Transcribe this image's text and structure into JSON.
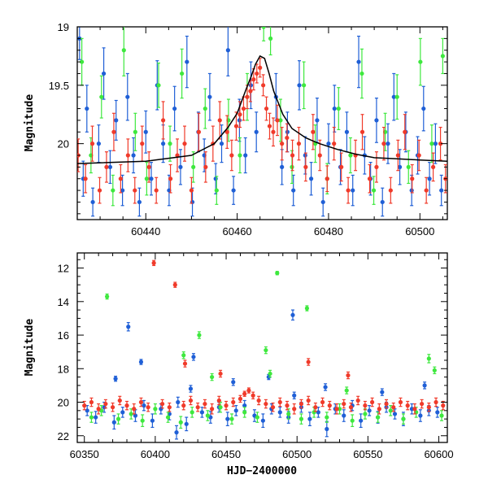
{
  "colors": {
    "blue": "#1f5fd6",
    "green": "#3ee83e",
    "red": "#f03a2a",
    "model": "#000000"
  },
  "chart_data": [
    {
      "type": "scatter",
      "title": "",
      "xlabel": "",
      "ylabel": "Magnitude",
      "xlim": [
        60425,
        60506
      ],
      "ylim": [
        19.0,
        20.65
      ],
      "y_inverted": true,
      "xticks": [
        60440,
        60460,
        60480,
        60500
      ],
      "yticks": [
        19,
        19.5,
        20
      ],
      "ytick_labels": [
        "19",
        "19.5",
        "20"
      ],
      "model_curve": {
        "x": [
          60425,
          60440,
          60450,
          60455,
          60458,
          60460,
          60462,
          60463,
          60464,
          60465,
          60466,
          60467,
          60468,
          60470,
          60472,
          60475,
          60478,
          60482,
          60486,
          60490,
          60495,
          60500,
          60506
        ],
        "y": [
          20.17,
          20.15,
          20.1,
          20.0,
          19.86,
          19.74,
          19.53,
          19.43,
          19.32,
          19.25,
          19.27,
          19.4,
          19.55,
          19.75,
          19.87,
          19.95,
          20.0,
          20.05,
          20.09,
          20.12,
          20.13,
          20.14,
          20.15
        ]
      },
      "series": [
        {
          "color": "blue",
          "x": [
            60425.5,
            60426.3,
            60427.1,
            60428.4,
            60429.7,
            60430.8,
            60432.2,
            60433.5,
            60434.9,
            60436.0,
            60437.3,
            60438.6,
            60440.0,
            60441.2,
            60442.5,
            60443.8,
            60445.1,
            60446.3,
            60447.6,
            60449.0,
            60450.2,
            60451.5,
            60452.8,
            60454.0,
            60455.3,
            60456.6,
            60458.0,
            60459.2,
            60460.5,
            60461.8,
            60463.0,
            60464.2,
            60468.5,
            60469.8,
            60471.0,
            60472.3,
            60473.6,
            60474.9,
            60476.2,
            60477.5,
            60478.8,
            60480.0,
            60481.3,
            60482.6,
            60484.0,
            60485.3,
            60486.6,
            60487.9,
            60489.2,
            60490.5,
            60491.8,
            60493.0,
            60494.3,
            60495.6,
            60496.9,
            60498.2,
            60499.5,
            60500.8,
            60502.1,
            60503.4,
            60504.7
          ],
          "y": [
            19.1,
            20.3,
            19.7,
            20.5,
            20.0,
            19.4,
            20.2,
            19.8,
            20.4,
            19.6,
            20.1,
            20.5,
            19.9,
            20.3,
            19.5,
            20.0,
            20.4,
            19.7,
            20.2,
            19.3,
            20.5,
            19.9,
            20.1,
            19.6,
            20.3,
            20.0,
            19.2,
            20.4,
            19.8,
            20.1,
            19.5,
            19.9,
            19.6,
            20.2,
            19.9,
            20.4,
            19.5,
            20.1,
            20.3,
            19.8,
            20.5,
            20.0,
            19.7,
            20.2,
            19.9,
            20.4,
            19.3,
            20.1,
            20.3,
            19.8,
            20.5,
            20.0,
            19.6,
            20.2,
            19.9,
            20.4,
            20.1,
            19.7,
            20.3,
            20.0,
            20.4
          ],
          "err": [
            0.18,
            0.15,
            0.2,
            0.12,
            0.16,
            0.22,
            0.14,
            0.17,
            0.13,
            0.2,
            0.15,
            0.12,
            0.18,
            0.14,
            0.21,
            0.16,
            0.13,
            0.19,
            0.15,
            0.22,
            0.12,
            0.17,
            0.14,
            0.2,
            0.13,
            0.16,
            0.22,
            0.12,
            0.18,
            0.15,
            0.2,
            0.17,
            0.2,
            0.15,
            0.17,
            0.13,
            0.21,
            0.16,
            0.14,
            0.19,
            0.12,
            0.17,
            0.2,
            0.15,
            0.17,
            0.13,
            0.22,
            0.16,
            0.14,
            0.19,
            0.12,
            0.17,
            0.2,
            0.15,
            0.17,
            0.13,
            0.16,
            0.19,
            0.14,
            0.17,
            0.13
          ]
        },
        {
          "color": "green",
          "x": [
            60426.0,
            60428.0,
            60430.3,
            60432.8,
            60435.2,
            60437.7,
            60440.2,
            60442.8,
            60445.3,
            60447.9,
            60450.4,
            60453.0,
            60455.5,
            60458.1,
            60460.6,
            60462.2,
            60465.8,
            60467.3,
            60469.5,
            60472.0,
            60474.6,
            60477.1,
            60479.7,
            60482.2,
            60484.8,
            60487.3,
            60489.9,
            60492.4,
            60495.0,
            60497.5,
            60500.1,
            60502.6,
            60505.0
          ],
          "y": [
            19.3,
            20.1,
            19.6,
            20.4,
            19.2,
            19.9,
            20.3,
            19.5,
            20.0,
            19.4,
            20.2,
            19.7,
            20.4,
            19.8,
            20.1,
            19.6,
            19.0,
            19.1,
            19.8,
            20.2,
            19.5,
            20.0,
            20.3,
            19.7,
            20.1,
            19.4,
            20.4,
            19.9,
            19.6,
            20.2,
            19.3,
            20.0,
            19.25
          ],
          "err": [
            0.2,
            0.15,
            0.18,
            0.13,
            0.22,
            0.16,
            0.14,
            0.19,
            0.15,
            0.21,
            0.13,
            0.17,
            0.12,
            0.18,
            0.15,
            0.2,
            0.12,
            0.14,
            0.18,
            0.14,
            0.2,
            0.16,
            0.13,
            0.18,
            0.15,
            0.21,
            0.12,
            0.16,
            0.19,
            0.14,
            0.2,
            0.16,
            0.15
          ]
        },
        {
          "color": "red",
          "x": [
            60425.2,
            60426.8,
            60428.3,
            60429.9,
            60431.4,
            60433.0,
            60434.5,
            60436.1,
            60437.6,
            60439.2,
            60440.7,
            60442.3,
            60443.8,
            60445.4,
            60446.9,
            60448.5,
            60450.0,
            60451.6,
            60453.1,
            60454.7,
            60456.2,
            60457.8,
            60458.8,
            60459.8,
            60460.6,
            60461.4,
            60462.2,
            60462.9,
            60463.6,
            60464.3,
            60465.0,
            60465.7,
            60466.4,
            60467.1,
            60467.9,
            60468.8,
            60469.8,
            60470.9,
            60472.1,
            60473.5,
            60475.0,
            60476.6,
            60478.1,
            60479.7,
            60481.2,
            60482.8,
            60484.3,
            60485.9,
            60487.4,
            60489.0,
            60490.5,
            60492.1,
            60493.6,
            60495.2,
            60496.7,
            60498.3,
            60499.8,
            60501.4,
            60502.9,
            60504.5,
            60505.6
          ],
          "y": [
            20.1,
            20.3,
            20.0,
            20.4,
            20.2,
            19.9,
            20.3,
            20.1,
            20.4,
            20.0,
            20.2,
            20.4,
            19.8,
            20.3,
            20.1,
            20.0,
            20.4,
            19.9,
            20.2,
            20.0,
            19.8,
            19.9,
            20.1,
            19.85,
            19.75,
            19.7,
            19.6,
            19.55,
            19.45,
            19.4,
            19.35,
            19.5,
            19.7,
            19.85,
            19.9,
            19.8,
            20.0,
            19.95,
            20.1,
            20.0,
            20.2,
            19.9,
            20.1,
            20.3,
            20.0,
            20.2,
            20.4,
            20.1,
            19.9,
            20.3,
            20.2,
            20.0,
            20.4,
            20.1,
            19.9,
            20.3,
            20.1,
            20.4,
            20.2,
            20.0,
            20.3
          ],
          "err": [
            0.14,
            0.12,
            0.15,
            0.11,
            0.13,
            0.16,
            0.12,
            0.14,
            0.11,
            0.15,
            0.13,
            0.11,
            0.16,
            0.12,
            0.14,
            0.15,
            0.11,
            0.16,
            0.13,
            0.15,
            0.16,
            0.14,
            0.13,
            0.12,
            0.11,
            0.1,
            0.1,
            0.09,
            0.09,
            0.08,
            0.08,
            0.09,
            0.1,
            0.11,
            0.12,
            0.13,
            0.14,
            0.12,
            0.13,
            0.14,
            0.12,
            0.15,
            0.13,
            0.11,
            0.14,
            0.12,
            0.11,
            0.13,
            0.15,
            0.12,
            0.13,
            0.14,
            0.11,
            0.13,
            0.15,
            0.12,
            0.13,
            0.11,
            0.12,
            0.14,
            0.12
          ]
        }
      ]
    },
    {
      "type": "scatter",
      "title": "",
      "xlabel": "HJD−2400000",
      "ylabel": "Magnitude",
      "xlim": [
        60345,
        60606
      ],
      "ylim": [
        11.1,
        22.4
      ],
      "y_inverted": true,
      "xticks": [
        60350,
        60400,
        60450,
        60500,
        60550,
        60600
      ],
      "yticks": [
        12,
        14,
        16,
        18,
        20,
        22
      ],
      "ytick_labels": [
        "12",
        "14",
        "16",
        "18",
        "20",
        "22"
      ],
      "series": [
        {
          "color": "blue",
          "x": [
            60352,
            60358,
            60364,
            60371,
            60377,
            60381,
            60386,
            60392,
            60398,
            60404,
            60410,
            60416,
            60422,
            60427,
            60433,
            60439,
            60445,
            60451,
            60457,
            60463,
            60470,
            60476,
            60482,
            60488,
            60494,
            60497,
            60503,
            60509,
            60515,
            60521,
            60527,
            60533,
            60539,
            60545,
            60551,
            60557,
            60563,
            60569,
            60575,
            60581,
            60587,
            60593,
            60599,
            60372,
            60390,
            60425,
            60455,
            60498,
            60520,
            60560,
            60590,
            60415,
            60480
          ],
          "y": [
            20.5,
            20.9,
            20.3,
            21.2,
            20.6,
            15.5,
            20.8,
            20.2,
            21.1,
            20.4,
            20.7,
            20.0,
            21.3,
            17.3,
            20.6,
            20.9,
            20.3,
            21.0,
            20.5,
            20.2,
            20.8,
            21.1,
            20.4,
            20.6,
            20.9,
            14.8,
            20.3,
            21.0,
            20.6,
            21.6,
            20.4,
            20.8,
            20.2,
            21.1,
            20.5,
            20.9,
            20.3,
            20.7,
            21.0,
            20.4,
            20.8,
            20.5,
            20.6,
            18.6,
            17.6,
            19.2,
            18.8,
            19.6,
            19.1,
            19.4,
            19.0,
            21.8,
            18.5
          ],
          "err": [
            0.3,
            0.35,
            0.3,
            0.4,
            0.3,
            0.25,
            0.35,
            0.3,
            0.4,
            0.3,
            0.35,
            0.3,
            0.4,
            0.2,
            0.3,
            0.35,
            0.3,
            0.4,
            0.3,
            0.3,
            0.35,
            0.4,
            0.3,
            0.3,
            0.35,
            0.3,
            0.3,
            0.4,
            0.3,
            0.45,
            0.3,
            0.35,
            0.3,
            0.4,
            0.3,
            0.35,
            0.3,
            0.3,
            0.4,
            0.3,
            0.35,
            0.3,
            0.3,
            0.15,
            0.15,
            0.2,
            0.2,
            0.2,
            0.2,
            0.2,
            0.2,
            0.4,
            0.15
          ]
        },
        {
          "color": "green",
          "x": [
            60355,
            60362,
            60366,
            60374,
            60383,
            60391,
            60400,
            60409,
            60418,
            60426,
            60431,
            60437,
            60446,
            60454,
            60463,
            60472,
            60478,
            60481,
            60486,
            60494,
            60503,
            60507,
            60512,
            60521,
            60530,
            60539,
            60548,
            60557,
            60566,
            60575,
            60584,
            60593,
            60597,
            60602,
            60420,
            60440,
            60535
          ],
          "y": [
            20.9,
            20.5,
            13.7,
            21.0,
            20.7,
            21.1,
            20.4,
            20.9,
            21.2,
            20.6,
            16.0,
            20.8,
            20.3,
            21.0,
            20.6,
            20.9,
            16.9,
            18.3,
            12.3,
            20.7,
            21.0,
            14.4,
            20.6,
            20.9,
            20.4,
            21.1,
            20.7,
            20.9,
            20.5,
            21.0,
            20.6,
            17.4,
            18.1,
            20.8,
            17.2,
            18.5,
            19.3
          ],
          "err": [
            0.3,
            0.3,
            0.15,
            0.3,
            0.3,
            0.35,
            0.3,
            0.3,
            0.35,
            0.3,
            0.2,
            0.3,
            0.3,
            0.3,
            0.3,
            0.3,
            0.2,
            0.2,
            0.1,
            0.3,
            0.3,
            0.15,
            0.3,
            0.3,
            0.3,
            0.35,
            0.3,
            0.3,
            0.3,
            0.3,
            0.3,
            0.25,
            0.2,
            0.3,
            0.2,
            0.2,
            0.2
          ]
        },
        {
          "color": "red",
          "x": [
            60350,
            60355,
            60360,
            60365,
            60370,
            60375,
            60380,
            60385,
            60390,
            60395,
            60399,
            60405,
            60410,
            60414,
            60420,
            60425,
            60430,
            60435,
            60440,
            60445,
            60450,
            60455,
            60460,
            60463,
            60466,
            60469,
            60473,
            60478,
            60483,
            60488,
            60493,
            60498,
            60503,
            60508,
            60513,
            60518,
            60523,
            60528,
            60533,
            60538,
            60543,
            60548,
            60553,
            60558,
            60563,
            60568,
            60573,
            60578,
            60583,
            60588,
            60593,
            60598,
            60603,
            60421,
            60508,
            60536,
            60446
          ],
          "y": [
            20.2,
            20.0,
            20.4,
            20.1,
            20.3,
            19.9,
            20.2,
            20.4,
            20.0,
            20.3,
            11.7,
            20.1,
            20.3,
            13.0,
            20.2,
            19.9,
            20.3,
            20.1,
            20.4,
            19.9,
            20.2,
            20.0,
            19.8,
            19.5,
            19.3,
            19.6,
            19.9,
            20.1,
            20.3,
            20.0,
            20.2,
            20.4,
            20.1,
            19.9,
            20.3,
            20.0,
            20.2,
            20.4,
            20.1,
            20.3,
            19.9,
            20.2,
            20.0,
            20.4,
            20.1,
            20.3,
            20.0,
            20.2,
            20.4,
            20.1,
            20.3,
            20.0,
            20.2,
            17.7,
            17.6,
            18.4,
            18.3
          ],
          "err": [
            0.25,
            0.25,
            0.3,
            0.25,
            0.25,
            0.25,
            0.25,
            0.3,
            0.25,
            0.25,
            0.15,
            0.25,
            0.25,
            0.15,
            0.25,
            0.25,
            0.25,
            0.25,
            0.3,
            0.25,
            0.25,
            0.25,
            0.2,
            0.15,
            0.15,
            0.2,
            0.25,
            0.25,
            0.25,
            0.25,
            0.25,
            0.3,
            0.25,
            0.25,
            0.25,
            0.25,
            0.25,
            0.3,
            0.25,
            0.25,
            0.25,
            0.25,
            0.25,
            0.3,
            0.25,
            0.25,
            0.25,
            0.25,
            0.3,
            0.25,
            0.25,
            0.25,
            0.25,
            0.2,
            0.2,
            0.2,
            0.2
          ]
        }
      ]
    }
  ]
}
